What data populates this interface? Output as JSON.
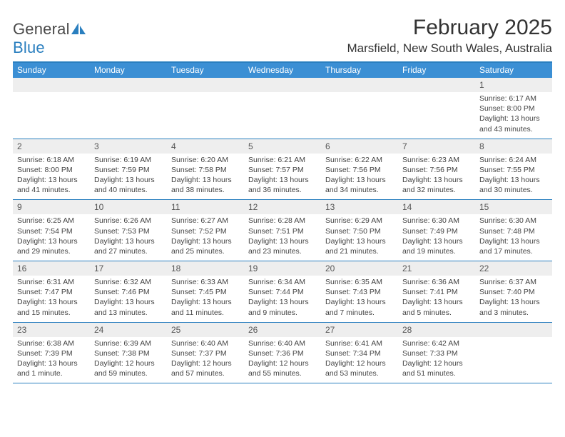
{
  "colors": {
    "brand_blue": "#2a7fbf",
    "header_blue": "#3b8fd4",
    "daynum_bg": "#eeeeee",
    "text_dark": "#333333",
    "text_muted": "#555555",
    "white": "#ffffff"
  },
  "logo": {
    "text_left": "General",
    "text_right": "Blue"
  },
  "title": "February 2025",
  "location": "Marsfield, New South Wales, Australia",
  "days_of_week": [
    "Sunday",
    "Monday",
    "Tuesday",
    "Wednesday",
    "Thursday",
    "Friday",
    "Saturday"
  ],
  "weeks": [
    [
      {
        "n": "",
        "empty": true
      },
      {
        "n": "",
        "empty": true
      },
      {
        "n": "",
        "empty": true
      },
      {
        "n": "",
        "empty": true
      },
      {
        "n": "",
        "empty": true
      },
      {
        "n": "",
        "empty": true
      },
      {
        "n": "1",
        "sunrise": "Sunrise: 6:17 AM",
        "sunset": "Sunset: 8:00 PM",
        "daylight": "Daylight: 13 hours and 43 minutes."
      }
    ],
    [
      {
        "n": "2",
        "sunrise": "Sunrise: 6:18 AM",
        "sunset": "Sunset: 8:00 PM",
        "daylight": "Daylight: 13 hours and 41 minutes."
      },
      {
        "n": "3",
        "sunrise": "Sunrise: 6:19 AM",
        "sunset": "Sunset: 7:59 PM",
        "daylight": "Daylight: 13 hours and 40 minutes."
      },
      {
        "n": "4",
        "sunrise": "Sunrise: 6:20 AM",
        "sunset": "Sunset: 7:58 PM",
        "daylight": "Daylight: 13 hours and 38 minutes."
      },
      {
        "n": "5",
        "sunrise": "Sunrise: 6:21 AM",
        "sunset": "Sunset: 7:57 PM",
        "daylight": "Daylight: 13 hours and 36 minutes."
      },
      {
        "n": "6",
        "sunrise": "Sunrise: 6:22 AM",
        "sunset": "Sunset: 7:56 PM",
        "daylight": "Daylight: 13 hours and 34 minutes."
      },
      {
        "n": "7",
        "sunrise": "Sunrise: 6:23 AM",
        "sunset": "Sunset: 7:56 PM",
        "daylight": "Daylight: 13 hours and 32 minutes."
      },
      {
        "n": "8",
        "sunrise": "Sunrise: 6:24 AM",
        "sunset": "Sunset: 7:55 PM",
        "daylight": "Daylight: 13 hours and 30 minutes."
      }
    ],
    [
      {
        "n": "9",
        "sunrise": "Sunrise: 6:25 AM",
        "sunset": "Sunset: 7:54 PM",
        "daylight": "Daylight: 13 hours and 29 minutes."
      },
      {
        "n": "10",
        "sunrise": "Sunrise: 6:26 AM",
        "sunset": "Sunset: 7:53 PM",
        "daylight": "Daylight: 13 hours and 27 minutes."
      },
      {
        "n": "11",
        "sunrise": "Sunrise: 6:27 AM",
        "sunset": "Sunset: 7:52 PM",
        "daylight": "Daylight: 13 hours and 25 minutes."
      },
      {
        "n": "12",
        "sunrise": "Sunrise: 6:28 AM",
        "sunset": "Sunset: 7:51 PM",
        "daylight": "Daylight: 13 hours and 23 minutes."
      },
      {
        "n": "13",
        "sunrise": "Sunrise: 6:29 AM",
        "sunset": "Sunset: 7:50 PM",
        "daylight": "Daylight: 13 hours and 21 minutes."
      },
      {
        "n": "14",
        "sunrise": "Sunrise: 6:30 AM",
        "sunset": "Sunset: 7:49 PM",
        "daylight": "Daylight: 13 hours and 19 minutes."
      },
      {
        "n": "15",
        "sunrise": "Sunrise: 6:30 AM",
        "sunset": "Sunset: 7:48 PM",
        "daylight": "Daylight: 13 hours and 17 minutes."
      }
    ],
    [
      {
        "n": "16",
        "sunrise": "Sunrise: 6:31 AM",
        "sunset": "Sunset: 7:47 PM",
        "daylight": "Daylight: 13 hours and 15 minutes."
      },
      {
        "n": "17",
        "sunrise": "Sunrise: 6:32 AM",
        "sunset": "Sunset: 7:46 PM",
        "daylight": "Daylight: 13 hours and 13 minutes."
      },
      {
        "n": "18",
        "sunrise": "Sunrise: 6:33 AM",
        "sunset": "Sunset: 7:45 PM",
        "daylight": "Daylight: 13 hours and 11 minutes."
      },
      {
        "n": "19",
        "sunrise": "Sunrise: 6:34 AM",
        "sunset": "Sunset: 7:44 PM",
        "daylight": "Daylight: 13 hours and 9 minutes."
      },
      {
        "n": "20",
        "sunrise": "Sunrise: 6:35 AM",
        "sunset": "Sunset: 7:43 PM",
        "daylight": "Daylight: 13 hours and 7 minutes."
      },
      {
        "n": "21",
        "sunrise": "Sunrise: 6:36 AM",
        "sunset": "Sunset: 7:41 PM",
        "daylight": "Daylight: 13 hours and 5 minutes."
      },
      {
        "n": "22",
        "sunrise": "Sunrise: 6:37 AM",
        "sunset": "Sunset: 7:40 PM",
        "daylight": "Daylight: 13 hours and 3 minutes."
      }
    ],
    [
      {
        "n": "23",
        "sunrise": "Sunrise: 6:38 AM",
        "sunset": "Sunset: 7:39 PM",
        "daylight": "Daylight: 13 hours and 1 minute."
      },
      {
        "n": "24",
        "sunrise": "Sunrise: 6:39 AM",
        "sunset": "Sunset: 7:38 PM",
        "daylight": "Daylight: 12 hours and 59 minutes."
      },
      {
        "n": "25",
        "sunrise": "Sunrise: 6:40 AM",
        "sunset": "Sunset: 7:37 PM",
        "daylight": "Daylight: 12 hours and 57 minutes."
      },
      {
        "n": "26",
        "sunrise": "Sunrise: 6:40 AM",
        "sunset": "Sunset: 7:36 PM",
        "daylight": "Daylight: 12 hours and 55 minutes."
      },
      {
        "n": "27",
        "sunrise": "Sunrise: 6:41 AM",
        "sunset": "Sunset: 7:34 PM",
        "daylight": "Daylight: 12 hours and 53 minutes."
      },
      {
        "n": "28",
        "sunrise": "Sunrise: 6:42 AM",
        "sunset": "Sunset: 7:33 PM",
        "daylight": "Daylight: 12 hours and 51 minutes."
      },
      {
        "n": "",
        "empty": true
      }
    ]
  ]
}
